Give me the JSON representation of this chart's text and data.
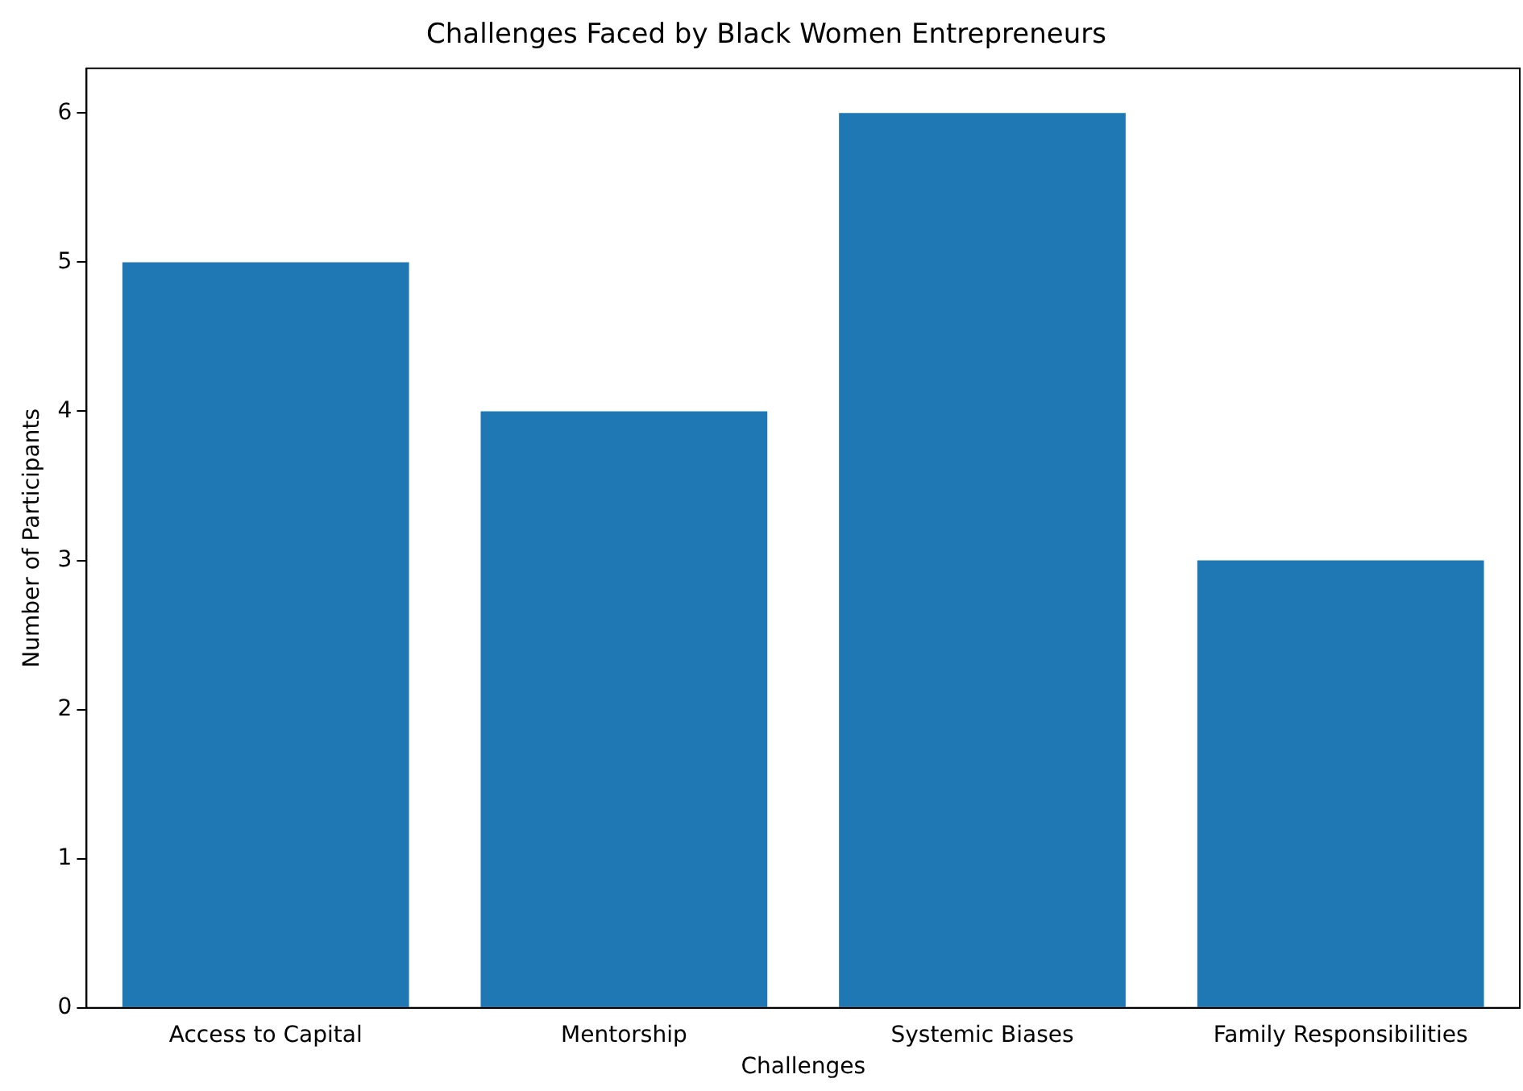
{
  "chart_data": {
    "type": "bar",
    "title": "Challenges Faced by Black Women Entrepreneurs",
    "xlabel": "Challenges",
    "ylabel": "Number of Participants",
    "categories": [
      "Access to Capital",
      "Mentorship",
      "Systemic Biases",
      "Family Responsibilities"
    ],
    "values": [
      5,
      4,
      6,
      3
    ],
    "color": "#1f77b4",
    "ylim": [
      0,
      6.3
    ],
    "yticks": [
      0,
      1,
      2,
      3,
      4,
      5,
      6
    ],
    "grid": false,
    "legend": false
  }
}
